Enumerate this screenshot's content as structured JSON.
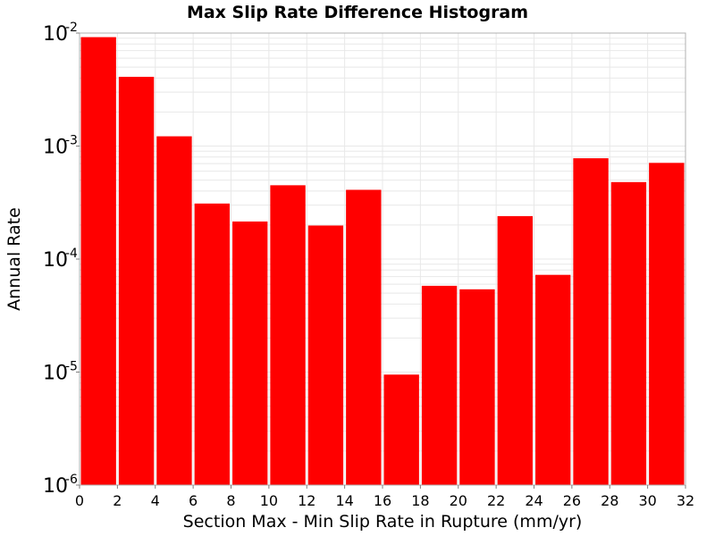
{
  "chart_data": {
    "type": "bar",
    "title": "Max Slip Rate Difference Histogram",
    "xlabel": "Section Max - Min Slip Rate in Rupture (mm/yr)",
    "ylabel": "Annual Rate",
    "xlim": [
      0,
      32
    ],
    "ylim": [
      1e-06,
      0.01
    ],
    "yscale": "log",
    "grid": true,
    "bar_color": "#ff0000",
    "x_ticks": [
      "0",
      "2",
      "4",
      "6",
      "8",
      "10",
      "12",
      "14",
      "16",
      "18",
      "20",
      "22",
      "24",
      "26",
      "28",
      "30",
      "32"
    ],
    "y_ticks": [
      {
        "base": "10",
        "exp": "-6"
      },
      {
        "base": "10",
        "exp": "-5"
      },
      {
        "base": "10",
        "exp": "-4"
      },
      {
        "base": "10",
        "exp": "-3"
      },
      {
        "base": "10",
        "exp": "-2"
      }
    ],
    "bins": [
      {
        "x0": 0,
        "x1": 2,
        "value": 0.0092
      },
      {
        "x0": 2,
        "x1": 4,
        "value": 0.0041
      },
      {
        "x0": 4,
        "x1": 6,
        "value": 0.00122
      },
      {
        "x0": 6,
        "x1": 8,
        "value": 0.00031
      },
      {
        "x0": 8,
        "x1": 10,
        "value": 0.000215
      },
      {
        "x0": 10,
        "x1": 12,
        "value": 0.00045
      },
      {
        "x0": 12,
        "x1": 14,
        "value": 0.000198
      },
      {
        "x0": 14,
        "x1": 16,
        "value": 0.00041
      },
      {
        "x0": 16,
        "x1": 18,
        "value": 9.5e-06
      },
      {
        "x0": 18,
        "x1": 20,
        "value": 5.8e-05
      },
      {
        "x0": 20,
        "x1": 22,
        "value": 5.4e-05
      },
      {
        "x0": 22,
        "x1": 24,
        "value": 0.00024
      },
      {
        "x0": 24,
        "x1": 26,
        "value": 7.25e-05
      },
      {
        "x0": 26,
        "x1": 28,
        "value": 0.00078
      },
      {
        "x0": 28,
        "x1": 30,
        "value": 0.00048
      },
      {
        "x0": 30,
        "x1": 32,
        "value": 0.00071
      }
    ]
  }
}
